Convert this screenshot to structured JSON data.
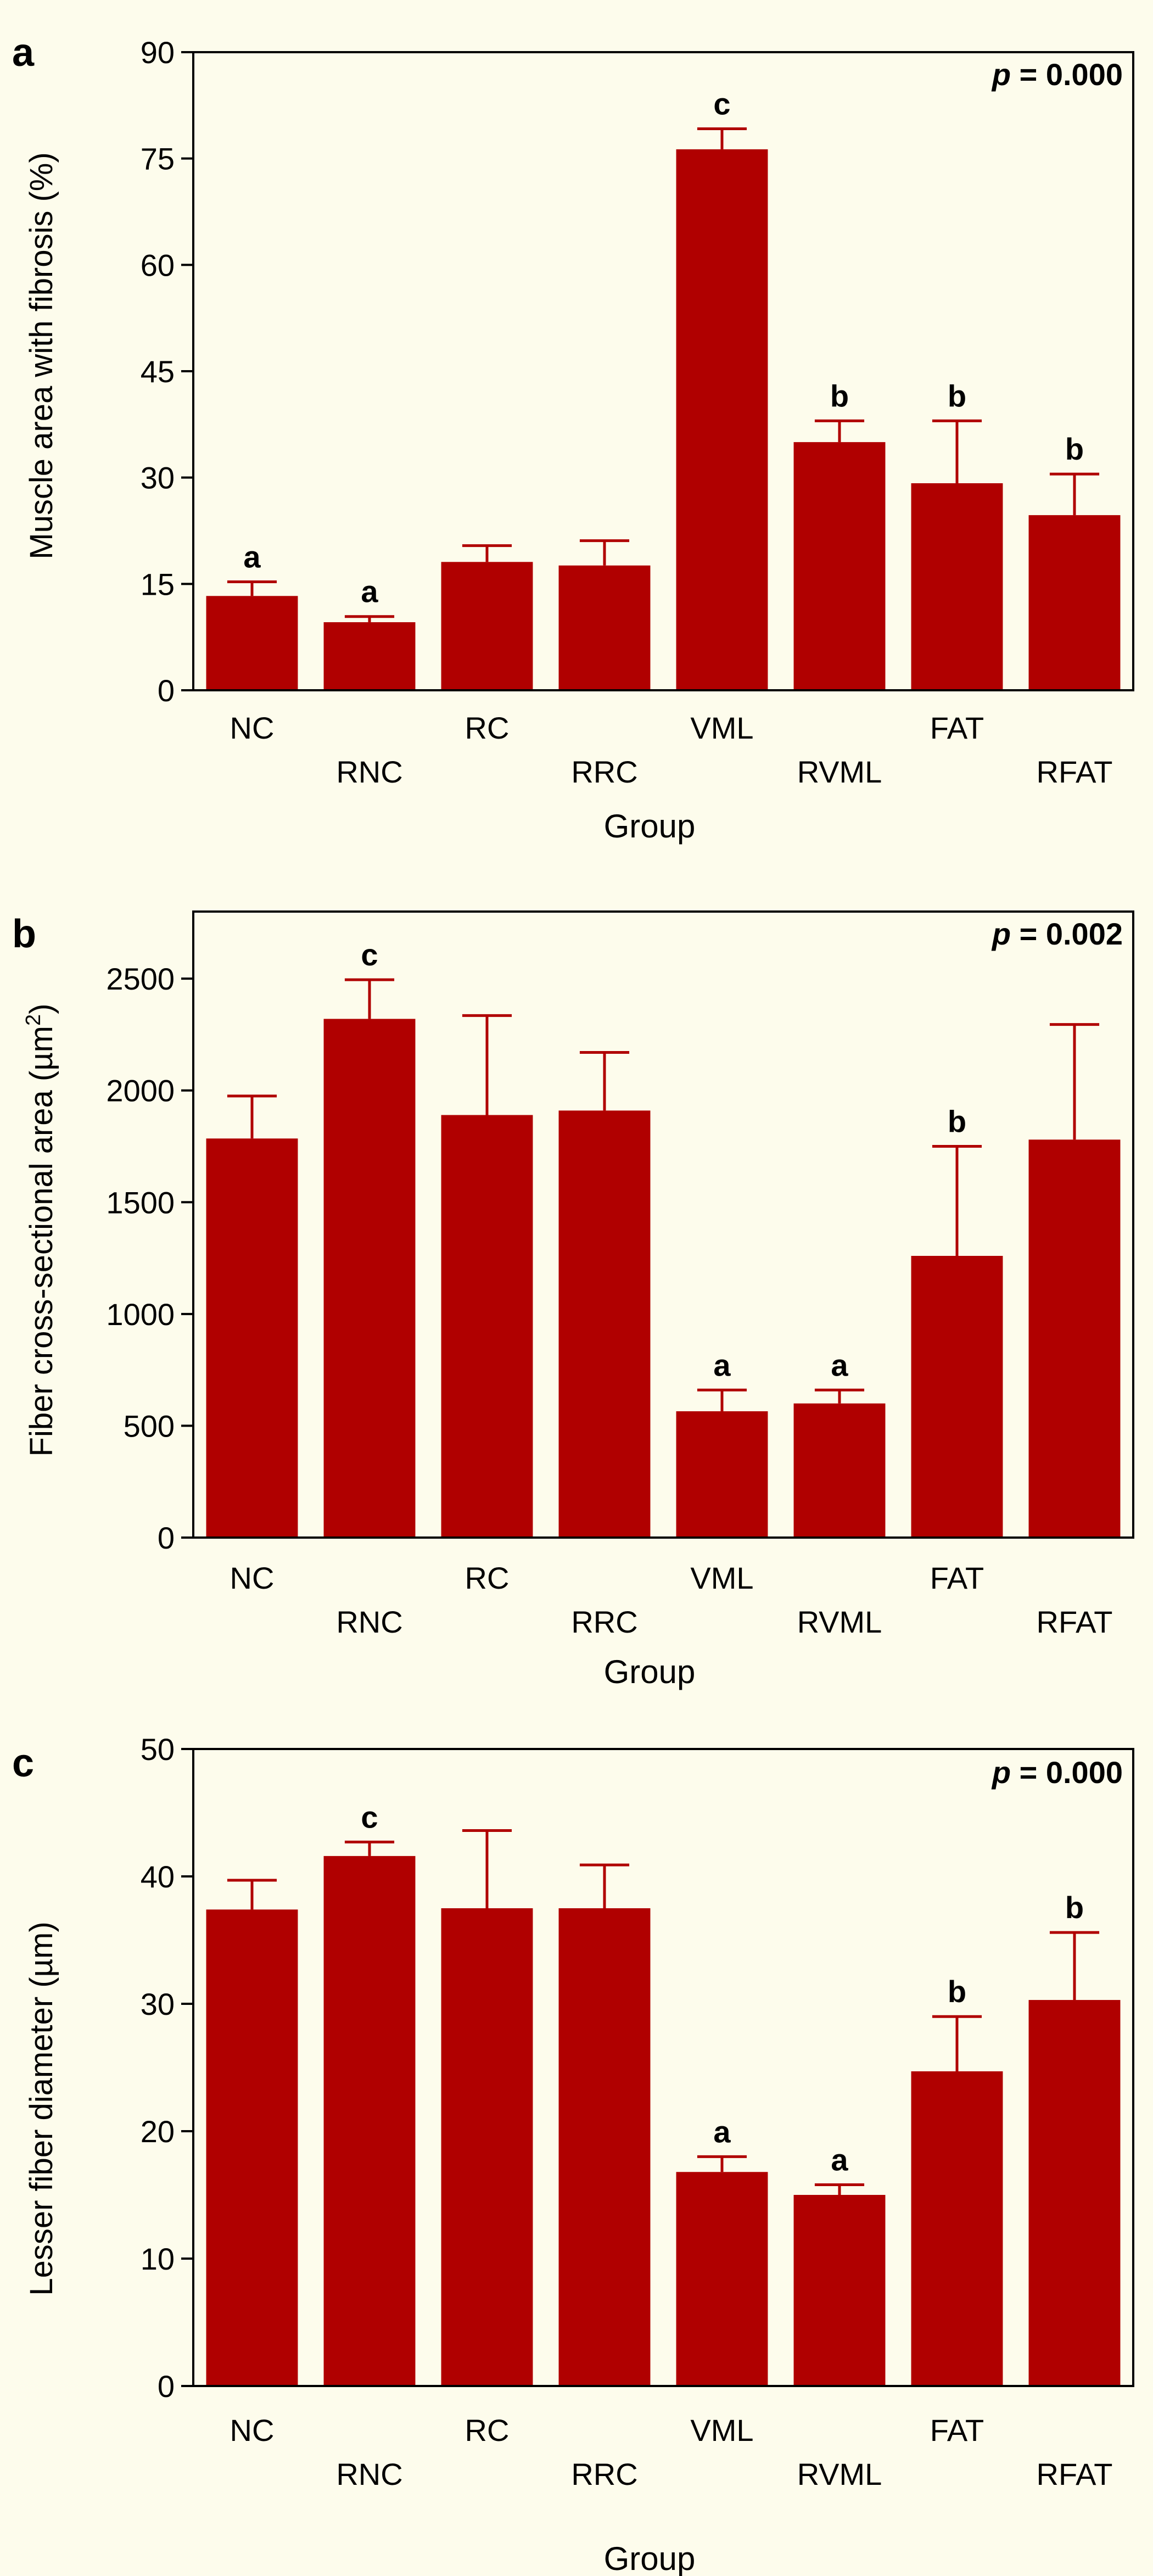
{
  "colors": {
    "background": "#fdfcec",
    "bar": "#b00000",
    "axis": "#000000"
  },
  "chart_data": [
    {
      "type": "bar",
      "panel_label": "a",
      "title": "",
      "xlabel": "Group",
      "ylabel": "Muscle area with fibrosis (%)",
      "p_prefix": "p",
      "p_suffix": " = 0.000",
      "ylim": [
        0,
        90
      ],
      "yticks": [
        0,
        15,
        30,
        45,
        60,
        75,
        90
      ],
      "categories": [
        "NC",
        "RNC",
        "RC",
        "RRC",
        "VML",
        "RVML",
        "FAT",
        "RFAT"
      ],
      "values": [
        13.3,
        9.6,
        18.1,
        17.6,
        76.3,
        35.0,
        29.2,
        24.7
      ],
      "errors": [
        2.0,
        0.8,
        2.3,
        3.5,
        2.9,
        3.0,
        8.8,
        5.8
      ],
      "letters": [
        "a",
        "a",
        "",
        "",
        "c",
        "b",
        "b",
        "b"
      ]
    },
    {
      "type": "bar",
      "panel_label": "b",
      "title": "",
      "xlabel": "Group",
      "ylabel_main": "Fiber cross-sectional area (µm",
      "ylabel_sup": "2",
      "ylabel_end": ")",
      "p_prefix": "p",
      "p_suffix": " = 0.002",
      "ylim": [
        0,
        2800
      ],
      "yticks": [
        0,
        500,
        1000,
        1500,
        2000,
        2500
      ],
      "categories": [
        "NC",
        "RNC",
        "RC",
        "RRC",
        "VML",
        "RVML",
        "FAT",
        "RFAT"
      ],
      "values": [
        1785,
        2320,
        1890,
        1910,
        565,
        600,
        1260,
        1780
      ],
      "errors": [
        190,
        175,
        445,
        260,
        95,
        60,
        490,
        515
      ],
      "letters": [
        "",
        "c",
        "",
        "",
        "a",
        "a",
        "b",
        ""
      ]
    },
    {
      "type": "bar",
      "panel_label": "c",
      "title": "",
      "xlabel": "Group",
      "ylabel": "Lesser fiber diameter (µm)",
      "p_prefix": "p",
      "p_suffix": " = 0.000",
      "ylim": [
        0,
        50
      ],
      "yticks": [
        0,
        10,
        20,
        30,
        40,
        50
      ],
      "categories": [
        "NC",
        "RNC",
        "RC",
        "RRC",
        "VML",
        "RVML",
        "FAT",
        "RFAT"
      ],
      "values": [
        37.4,
        41.6,
        37.5,
        37.5,
        16.8,
        15.0,
        24.7,
        30.3
      ],
      "errors": [
        2.3,
        1.1,
        6.1,
        3.4,
        1.2,
        0.8,
        4.3,
        5.3
      ],
      "letters": [
        "",
        "c",
        "",
        "",
        "a",
        "a",
        "b",
        "b"
      ]
    }
  ]
}
